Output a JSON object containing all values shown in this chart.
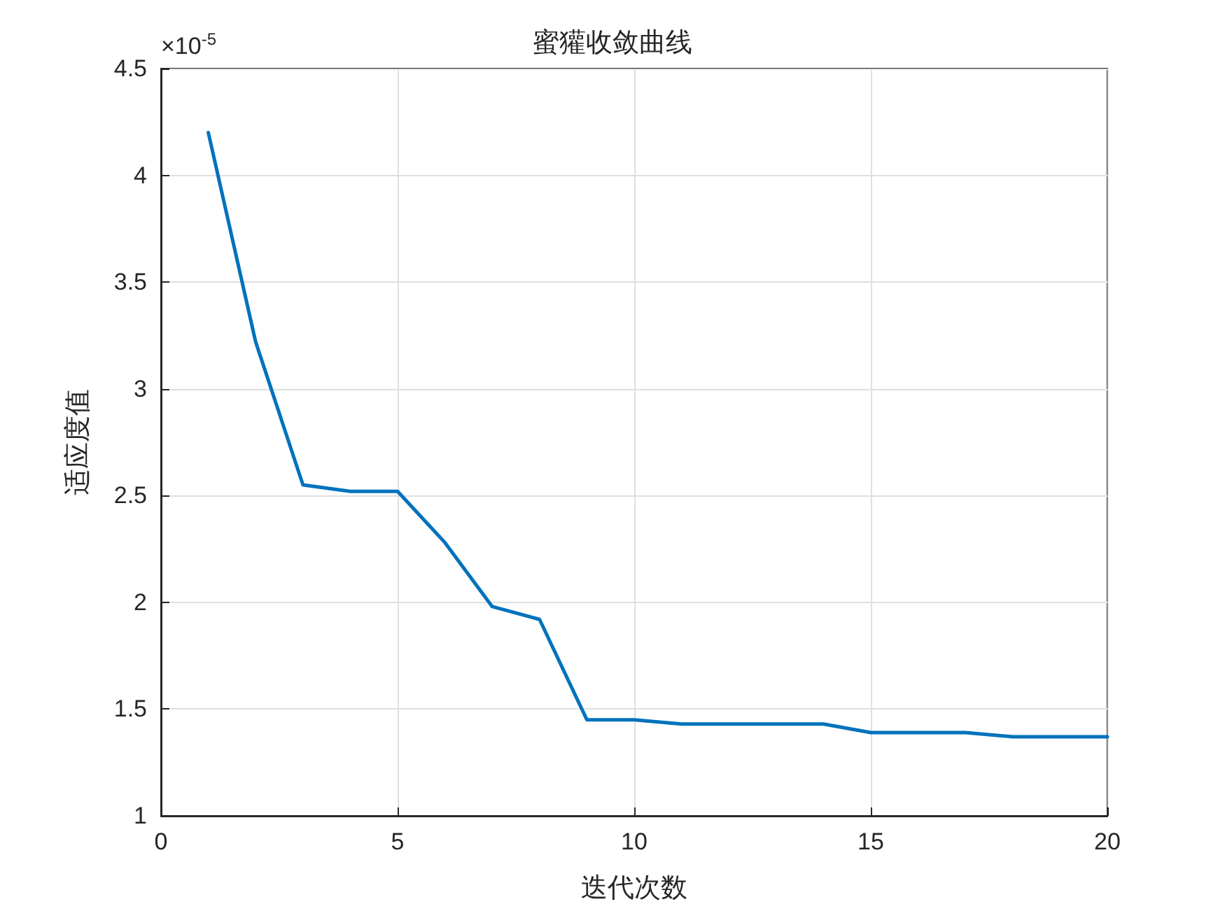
{
  "chart_data": {
    "type": "line",
    "title": "蜜獾收敛曲线",
    "xlabel": "迭代次数",
    "ylabel": "适应度值",
    "annotations": [
      "×10$^{-5}$"
    ],
    "x": [
      1,
      2,
      3,
      4,
      5,
      6,
      7,
      8,
      9,
      10,
      11,
      12,
      13,
      14,
      15,
      16,
      17,
      18,
      19,
      20
    ],
    "series": [
      {
        "color": "#0072bd",
        "values": [
          4.2,
          3.22,
          2.55,
          2.52,
          2.52,
          2.28,
          1.98,
          1.92,
          1.45,
          1.45,
          1.43,
          1.43,
          1.43,
          1.43,
          1.39,
          1.39,
          1.39,
          1.37,
          1.37,
          1.37
        ]
      }
    ],
    "xlim": [
      0,
      20
    ],
    "xticks": [
      0,
      5,
      10,
      15,
      20
    ],
    "ylim": [
      1,
      4.5
    ],
    "yticks": [
      1,
      1.5,
      2,
      2.5,
      3,
      3.5,
      4,
      4.5
    ],
    "grid": true,
    "marker": "none",
    "line_style": "solid"
  }
}
